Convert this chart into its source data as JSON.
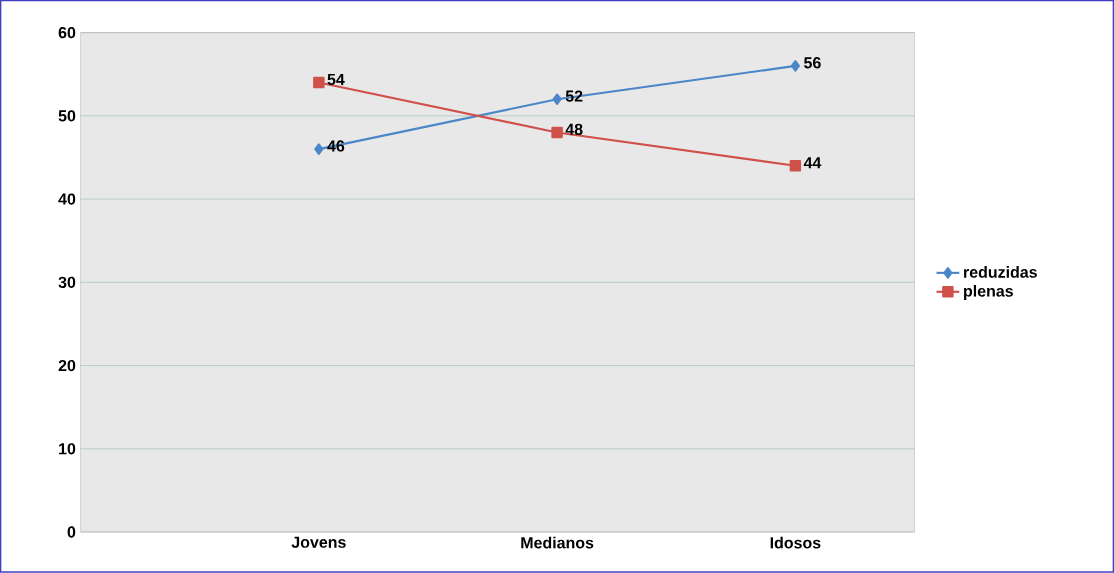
{
  "chart_data": {
    "type": "line",
    "categories": [
      "Jovens",
      "Medianos",
      "Idosos"
    ],
    "series": [
      {
        "name": "reduzidas",
        "color": "#4a86c8",
        "values": [
          46,
          52,
          56
        ],
        "marker": "diamond"
      },
      {
        "name": "plenas",
        "color": "#d0504a",
        "values": [
          54,
          48,
          44
        ],
        "marker": "square"
      }
    ],
    "ylim": [
      0,
      60
    ],
    "yticks": [
      0,
      10,
      20,
      30,
      40,
      50,
      60
    ],
    "grid": "y",
    "legend": "right",
    "data_labels": true
  }
}
